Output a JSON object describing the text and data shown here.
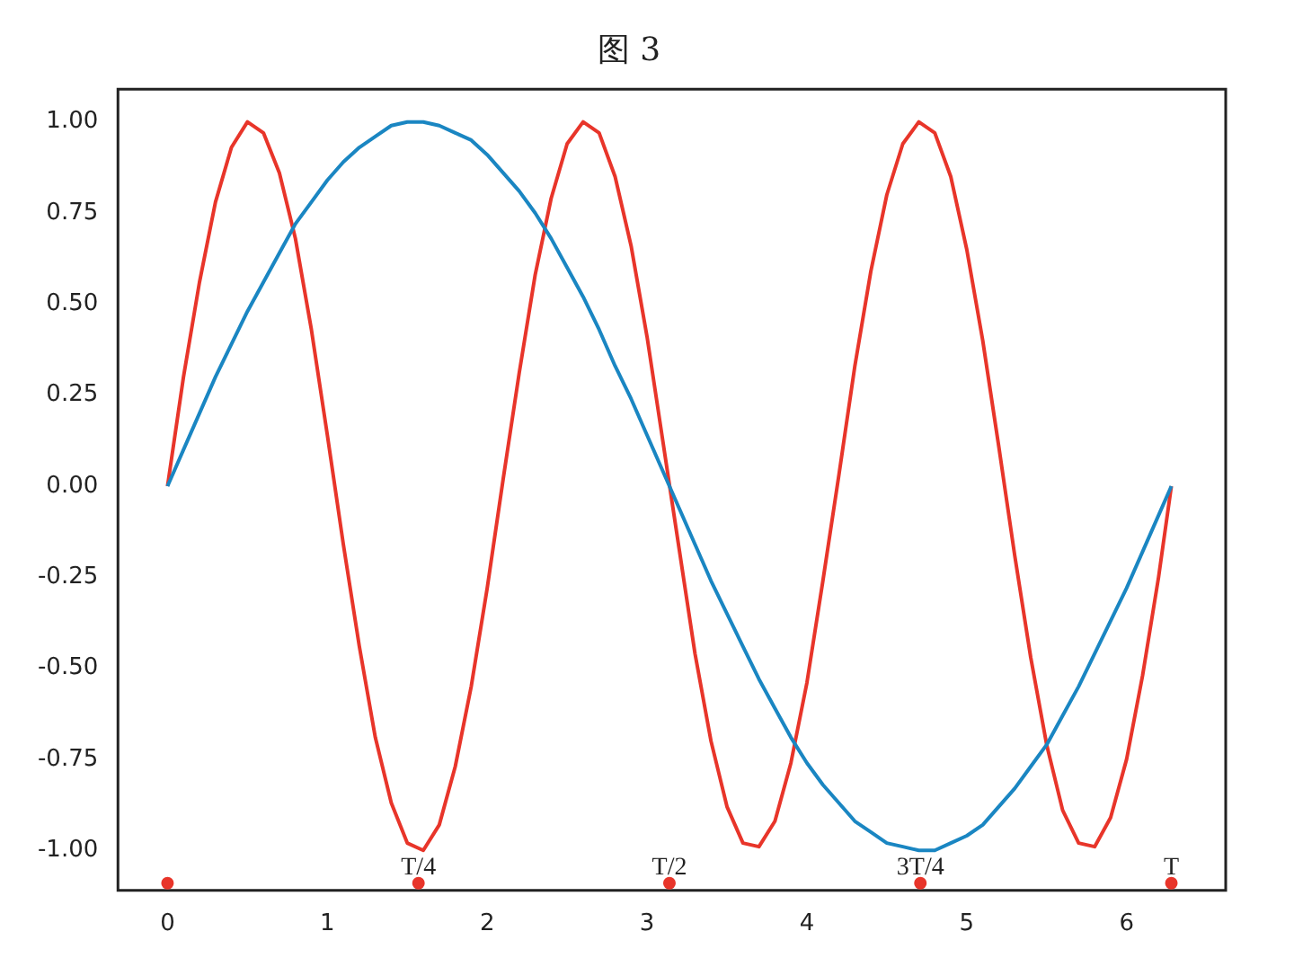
{
  "chart_data": {
    "type": "line",
    "title": "图 3",
    "x": [
      0,
      0.1,
      0.2,
      0.3,
      0.4,
      0.5,
      0.6,
      0.7,
      0.8,
      0.9,
      1,
      1.1,
      1.2,
      1.3,
      1.4,
      1.5,
      1.6,
      1.7,
      1.8,
      1.9,
      2,
      2.1,
      2.2,
      2.3,
      2.4,
      2.5,
      2.6,
      2.7,
      2.8,
      2.9,
      3,
      3.1,
      3.2,
      3.3,
      3.4,
      3.5,
      3.6,
      3.7,
      3.8,
      3.9,
      4,
      4.1,
      4.2,
      4.3,
      4.4,
      4.5,
      4.6,
      4.7,
      4.8,
      4.9,
      5,
      5.1,
      5.2,
      5.3,
      5.4,
      5.5,
      5.6,
      5.7,
      5.8,
      5.9,
      6,
      6.1,
      6.2,
      6.28
    ],
    "series": [
      {
        "color": "#1a86c2",
        "marker": "none",
        "values": [
          0,
          0.1,
          0.2,
          0.3,
          0.39,
          0.48,
          0.56,
          0.64,
          0.72,
          0.78,
          0.84,
          0.89,
          0.93,
          0.96,
          0.99,
          1,
          1,
          0.99,
          0.97,
          0.95,
          0.91,
          0.86,
          0.81,
          0.75,
          0.68,
          0.6,
          0.52,
          0.43,
          0.33,
          0.24,
          0.14,
          0.04,
          -0.06,
          -0.16,
          -0.26,
          -0.35,
          -0.44,
          -0.53,
          -0.61,
          -0.69,
          -0.76,
          -0.82,
          -0.87,
          -0.92,
          -0.95,
          -0.98,
          -0.99,
          -1,
          -1,
          -0.98,
          -0.96,
          -0.93,
          -0.88,
          -0.83,
          -0.77,
          -0.71,
          -0.63,
          -0.55,
          -0.46,
          -0.37,
          -0.28,
          -0.18,
          -0.08,
          0
        ]
      },
      {
        "color": "#e8352a",
        "marker": "none",
        "values": [
          0,
          0.3,
          0.56,
          0.78,
          0.93,
          1,
          0.97,
          0.86,
          0.68,
          0.43,
          0.14,
          -0.16,
          -0.44,
          -0.69,
          -0.87,
          -0.98,
          -1,
          -0.93,
          -0.77,
          -0.55,
          -0.28,
          0.02,
          0.31,
          0.58,
          0.79,
          0.94,
          1,
          0.97,
          0.85,
          0.66,
          0.41,
          0.12,
          -0.17,
          -0.46,
          -0.7,
          -0.88,
          -0.98,
          -0.99,
          -0.92,
          -0.76,
          -0.54,
          -0.26,
          0.03,
          0.33,
          0.59,
          0.8,
          0.94,
          1,
          0.97,
          0.85,
          0.65,
          0.4,
          0.11,
          -0.19,
          -0.47,
          -0.71,
          -0.89,
          -0.98,
          -0.99,
          -0.91,
          -0.75,
          -0.52,
          -0.25,
          0
        ]
      },
      {
        "type": "scatter",
        "color": "#e8352a",
        "marker": "circle",
        "x": [
          0,
          1.57,
          3.14,
          4.71,
          6.28
        ],
        "values": [
          -1.09,
          -1.09,
          -1.09,
          -1.09,
          -1.09
        ]
      }
    ],
    "xlim": [
      -0.31,
      6.62
    ],
    "ylim": [
      -1.11,
      1.09
    ],
    "xticks": [
      0,
      1,
      2,
      3,
      4,
      5,
      6
    ],
    "yticks": [
      {
        "value": -1,
        "label": "-1.00"
      },
      {
        "value": -0.75,
        "label": "-0.75"
      },
      {
        "value": -0.5,
        "label": "-0.50"
      },
      {
        "value": -0.25,
        "label": "-0.25"
      },
      {
        "value": 0,
        "label": "0.00"
      },
      {
        "value": 0.25,
        "label": "0.25"
      },
      {
        "value": 0.5,
        "label": "0.50"
      },
      {
        "value": 0.75,
        "label": "0.75"
      },
      {
        "value": 1,
        "label": "1.00"
      }
    ],
    "annotations": [
      {
        "text": "T/4",
        "x": 1.57,
        "y": -1.09
      },
      {
        "text": "T/2",
        "x": 3.14,
        "y": -1.09
      },
      {
        "text": "3T/4",
        "x": 4.71,
        "y": -1.09
      },
      {
        "text": "T",
        "x": 6.28,
        "y": -1.09
      }
    ],
    "grid": false,
    "legend": false
  }
}
